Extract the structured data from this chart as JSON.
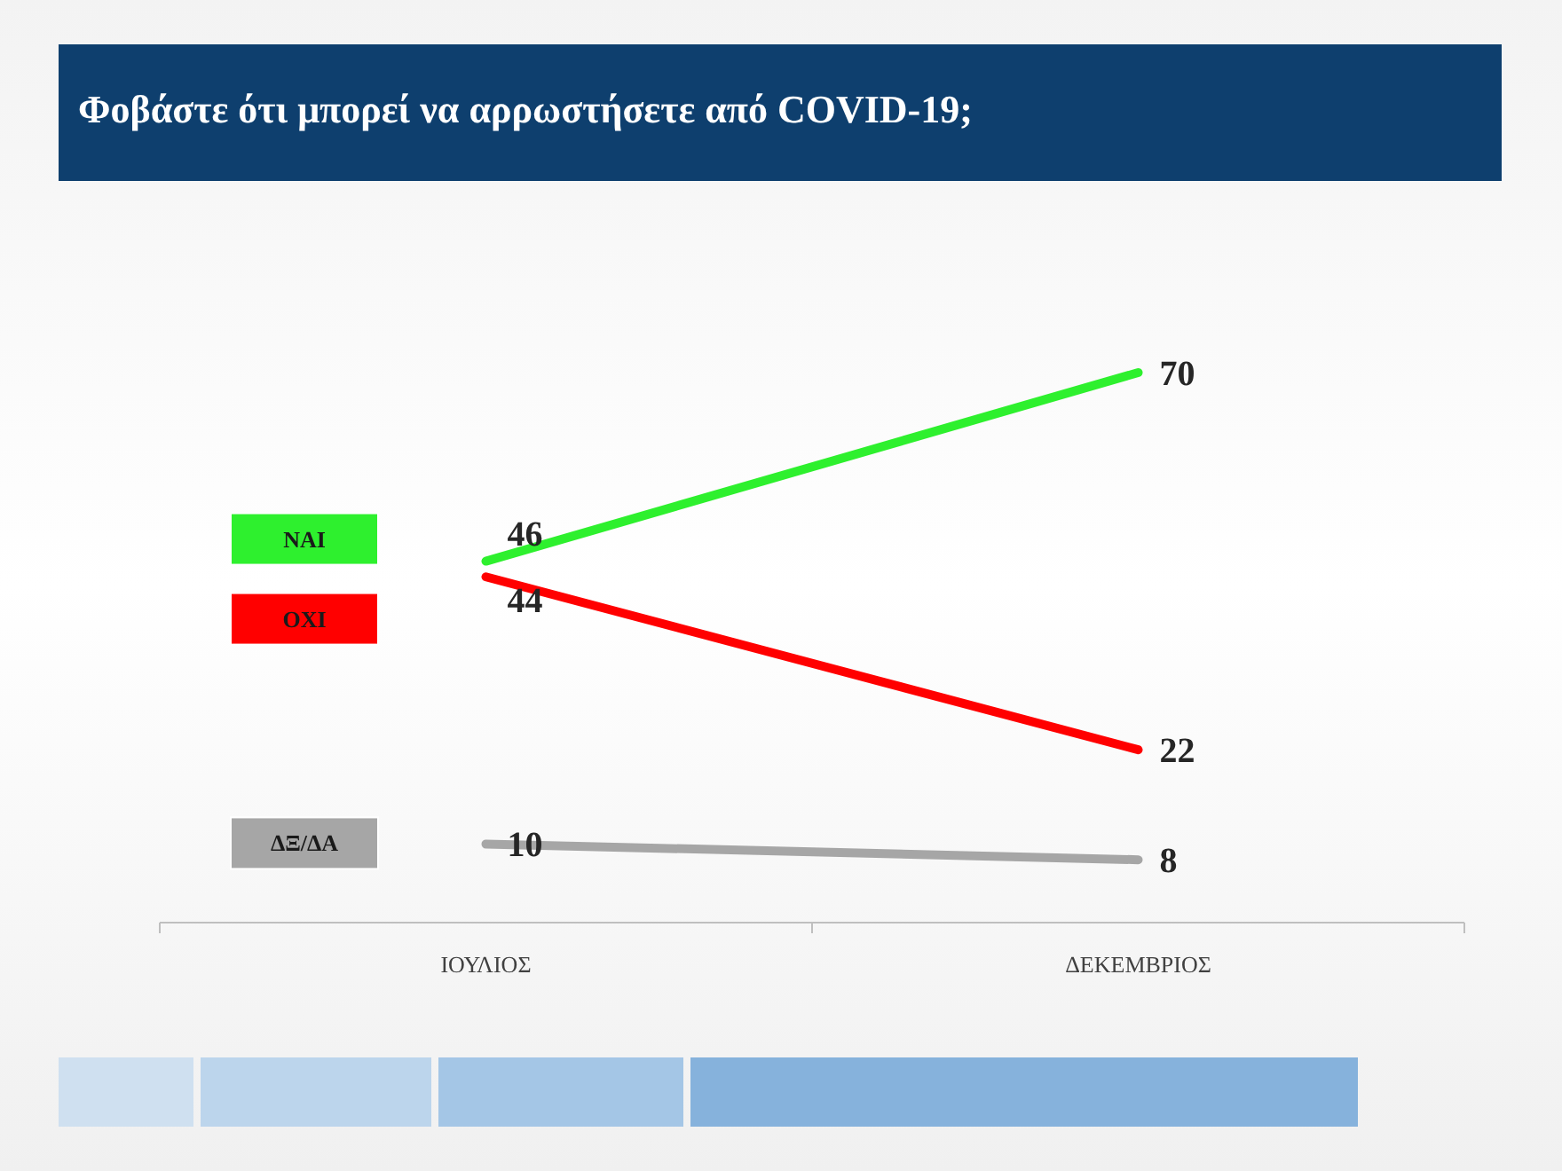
{
  "chart_data": {
    "type": "line",
    "title": "Φοβάστε ότι μπορεί να αρρωστήσετε από COVID-19;",
    "categories": [
      "ΙΟΥΛΙΟΣ",
      "ΔΕΚΕΜΒΡΙΟΣ"
    ],
    "series": [
      {
        "name": "ΝΑΙ",
        "color": "#2ef02e",
        "values": [
          46,
          70
        ]
      },
      {
        "name": "ΟΧΙ",
        "color": "#ff0000",
        "values": [
          44,
          22
        ]
      },
      {
        "name": "ΔΞ/ΔΑ",
        "color": "#a6a6a6",
        "values": [
          10,
          8
        ]
      }
    ],
    "data_labels": true,
    "legend": "left",
    "marker": "none",
    "line_style": "solid"
  }
}
